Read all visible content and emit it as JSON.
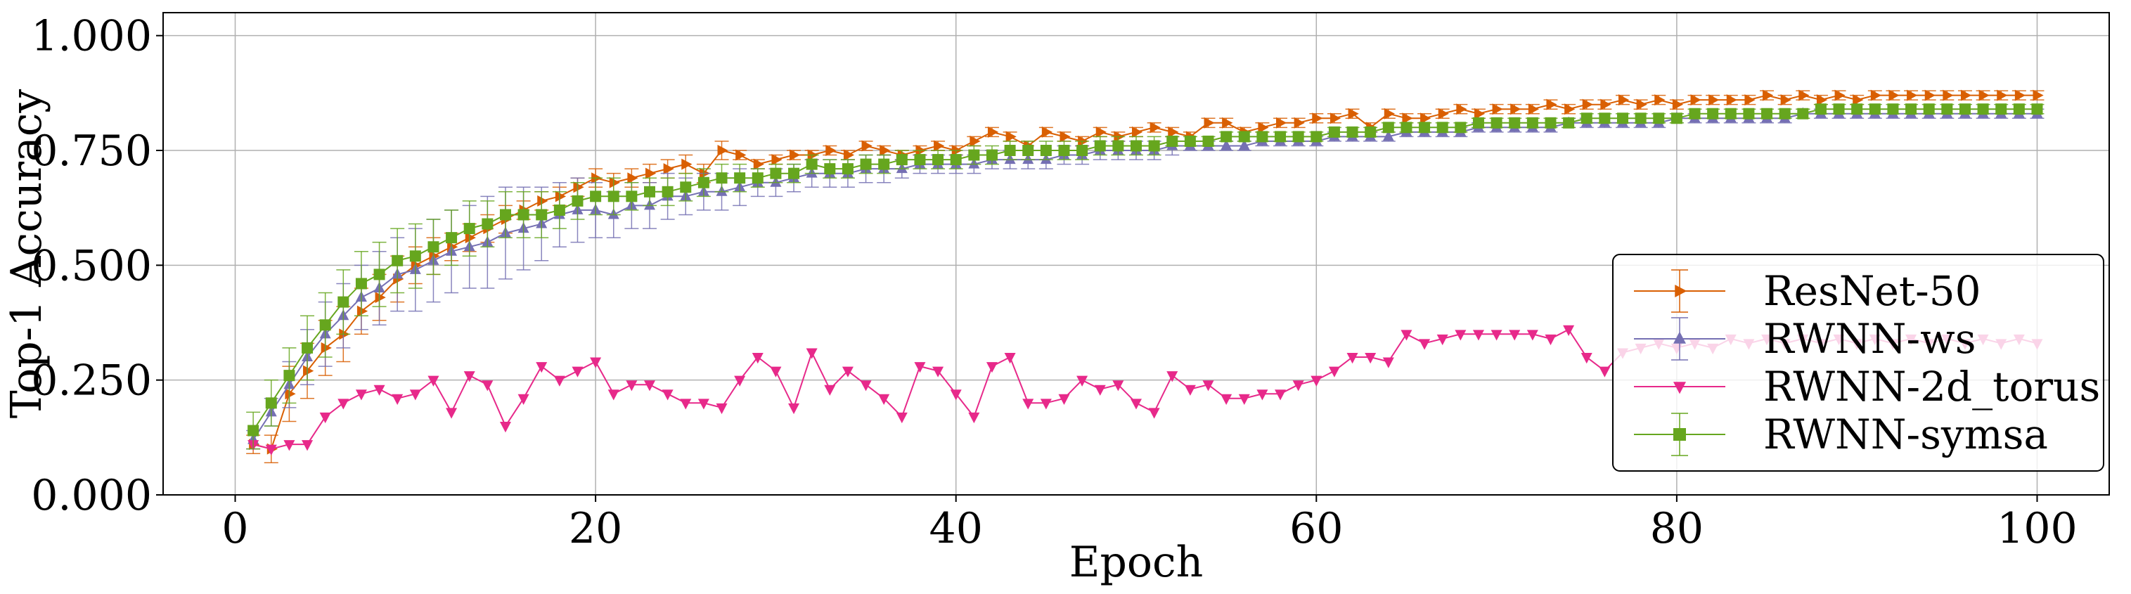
{
  "chart_data": {
    "type": "line",
    "title": "",
    "xlabel": "Epoch",
    "ylabel": "Top-1 Accuracy",
    "xlim": [
      -4,
      104
    ],
    "ylim": [
      0,
      1.05
    ],
    "xticks": [
      "0",
      "20",
      "40",
      "60",
      "80",
      "100"
    ],
    "yticks": [
      "0.000",
      "0.250",
      "0.500",
      "0.750",
      "1.000"
    ],
    "grid": true,
    "legend_position": "lower-right",
    "series": [
      {
        "name": "ResNet-50",
        "color": "#d95f02",
        "marker": "triangle-right",
        "x": [
          1,
          2,
          3,
          4,
          5,
          6,
          7,
          8,
          9,
          10,
          11,
          12,
          13,
          14,
          15,
          16,
          17,
          18,
          19,
          20,
          21,
          22,
          23,
          24,
          25,
          26,
          27,
          28,
          29,
          30,
          31,
          32,
          33,
          34,
          35,
          36,
          37,
          38,
          39,
          40,
          41,
          42,
          43,
          44,
          45,
          46,
          47,
          48,
          49,
          50,
          51,
          52,
          53,
          54,
          55,
          56,
          57,
          58,
          59,
          60,
          61,
          62,
          63,
          64,
          65,
          66,
          67,
          68,
          69,
          70,
          71,
          72,
          73,
          74,
          75,
          76,
          77,
          78,
          79,
          80,
          81,
          82,
          83,
          84,
          85,
          86,
          87,
          88,
          89,
          90,
          91,
          92,
          93,
          94,
          95,
          96,
          97,
          98,
          99,
          100
        ],
        "y": [
          0.11,
          0.1,
          0.22,
          0.27,
          0.32,
          0.35,
          0.4,
          0.43,
          0.47,
          0.5,
          0.52,
          0.54,
          0.56,
          0.58,
          0.6,
          0.62,
          0.64,
          0.65,
          0.67,
          0.69,
          0.68,
          0.69,
          0.7,
          0.71,
          0.72,
          0.7,
          0.75,
          0.74,
          0.72,
          0.73,
          0.74,
          0.74,
          0.75,
          0.74,
          0.76,
          0.75,
          0.74,
          0.75,
          0.76,
          0.75,
          0.77,
          0.79,
          0.78,
          0.76,
          0.79,
          0.78,
          0.77,
          0.79,
          0.78,
          0.79,
          0.8,
          0.79,
          0.78,
          0.81,
          0.81,
          0.79,
          0.8,
          0.81,
          0.81,
          0.82,
          0.82,
          0.83,
          0.8,
          0.83,
          0.82,
          0.82,
          0.83,
          0.84,
          0.83,
          0.84,
          0.84,
          0.84,
          0.85,
          0.84,
          0.85,
          0.85,
          0.86,
          0.85,
          0.86,
          0.85,
          0.86,
          0.86,
          0.86,
          0.86,
          0.87,
          0.86,
          0.87,
          0.86,
          0.87,
          0.86,
          0.87,
          0.87,
          0.87,
          0.87,
          0.87,
          0.87,
          0.87,
          0.87,
          0.87,
          0.87
        ],
        "err": [
          0.02,
          0.03,
          0.06,
          0.06,
          0.06,
          0.06,
          0.05,
          0.05,
          0.05,
          0.04,
          0.04,
          0.03,
          0.03,
          0.03,
          0.03,
          0.02,
          0.02,
          0.02,
          0.02,
          0.02,
          0.02,
          0.02,
          0.02,
          0.02,
          0.02,
          0.02,
          0.02,
          0.01,
          0.01,
          0.01,
          0.01,
          0.01,
          0.01,
          0.01,
          0.01,
          0.01,
          0.01,
          0.01,
          0.01,
          0.01,
          0.01,
          0.01,
          0.01,
          0.01,
          0.01,
          0.01,
          0.01,
          0.01,
          0.01,
          0.01,
          0.01,
          0.01,
          0.01,
          0.01,
          0.01,
          0.01,
          0.01,
          0.01,
          0.01,
          0.01,
          0.01,
          0.01,
          0.01,
          0.01,
          0.01,
          0.01,
          0.01,
          0.01,
          0.01,
          0.01,
          0.01,
          0.01,
          0.01,
          0.01,
          0.01,
          0.01,
          0.01,
          0.01,
          0.01,
          0.01,
          0.01,
          0.01,
          0.01,
          0.01,
          0.01,
          0.01,
          0.01,
          0.01,
          0.01,
          0.01,
          0.01,
          0.01,
          0.01,
          0.01,
          0.01,
          0.01,
          0.01,
          0.01,
          0.01,
          0.01
        ]
      },
      {
        "name": "RWNN-ws",
        "color": "#7570b3",
        "marker": "triangle-up",
        "x": [
          1,
          2,
          3,
          4,
          5,
          6,
          7,
          8,
          9,
          10,
          11,
          12,
          13,
          14,
          15,
          16,
          17,
          18,
          19,
          20,
          21,
          22,
          23,
          24,
          25,
          26,
          27,
          28,
          29,
          30,
          31,
          32,
          33,
          34,
          35,
          36,
          37,
          38,
          39,
          40,
          41,
          42,
          43,
          44,
          45,
          46,
          47,
          48,
          49,
          50,
          51,
          52,
          53,
          54,
          55,
          56,
          57,
          58,
          59,
          60,
          61,
          62,
          63,
          64,
          65,
          66,
          67,
          68,
          69,
          70,
          71,
          72,
          73,
          74,
          75,
          76,
          77,
          78,
          79,
          80,
          81,
          82,
          83,
          84,
          85,
          86,
          87,
          88,
          89,
          90,
          91,
          92,
          93,
          94,
          95,
          96,
          97,
          98,
          99,
          100
        ],
        "y": [
          0.12,
          0.18,
          0.24,
          0.3,
          0.35,
          0.39,
          0.43,
          0.45,
          0.48,
          0.49,
          0.51,
          0.53,
          0.54,
          0.55,
          0.57,
          0.58,
          0.59,
          0.61,
          0.62,
          0.62,
          0.61,
          0.63,
          0.63,
          0.65,
          0.65,
          0.66,
          0.66,
          0.67,
          0.68,
          0.68,
          0.69,
          0.7,
          0.7,
          0.7,
          0.71,
          0.71,
          0.71,
          0.72,
          0.72,
          0.72,
          0.72,
          0.73,
          0.73,
          0.73,
          0.73,
          0.74,
          0.74,
          0.75,
          0.75,
          0.75,
          0.75,
          0.76,
          0.76,
          0.76,
          0.76,
          0.76,
          0.77,
          0.77,
          0.77,
          0.77,
          0.78,
          0.78,
          0.78,
          0.78,
          0.79,
          0.79,
          0.79,
          0.79,
          0.8,
          0.8,
          0.8,
          0.8,
          0.8,
          0.81,
          0.81,
          0.81,
          0.81,
          0.81,
          0.81,
          0.82,
          0.82,
          0.82,
          0.82,
          0.82,
          0.82,
          0.82,
          0.83,
          0.83,
          0.83,
          0.83,
          0.83,
          0.83,
          0.83,
          0.83,
          0.83,
          0.83,
          0.83,
          0.83,
          0.83,
          0.83
        ],
        "err": [
          0.02,
          0.03,
          0.05,
          0.06,
          0.07,
          0.07,
          0.07,
          0.08,
          0.08,
          0.09,
          0.09,
          0.09,
          0.09,
          0.1,
          0.1,
          0.09,
          0.08,
          0.07,
          0.07,
          0.06,
          0.05,
          0.05,
          0.05,
          0.05,
          0.04,
          0.04,
          0.04,
          0.04,
          0.03,
          0.03,
          0.03,
          0.03,
          0.03,
          0.03,
          0.03,
          0.03,
          0.02,
          0.02,
          0.02,
          0.02,
          0.02,
          0.02,
          0.02,
          0.02,
          0.02,
          0.02,
          0.02,
          0.02,
          0.02,
          0.02,
          0.02,
          0.02,
          0.01,
          0.01,
          0.01,
          0.01,
          0.01,
          0.01,
          0.01,
          0.01,
          0.01,
          0.01,
          0.01,
          0.01,
          0.01,
          0.01,
          0.01,
          0.01,
          0.01,
          0.01,
          0.01,
          0.01,
          0.01,
          0.01,
          0.01,
          0.01,
          0.01,
          0.01,
          0.01,
          0.01,
          0.01,
          0.01,
          0.01,
          0.01,
          0.01,
          0.01,
          0.01,
          0.01,
          0.01,
          0.01,
          0.01,
          0.01,
          0.01,
          0.01,
          0.01,
          0.01,
          0.01,
          0.01,
          0.01,
          0.01
        ]
      },
      {
        "name": "RWNN-2d_torus",
        "color": "#e7298a",
        "marker": "triangle-down",
        "x": [
          1,
          2,
          3,
          4,
          5,
          6,
          7,
          8,
          9,
          10,
          11,
          12,
          13,
          14,
          15,
          16,
          17,
          18,
          19,
          20,
          21,
          22,
          23,
          24,
          25,
          26,
          27,
          28,
          29,
          30,
          31,
          32,
          33,
          34,
          35,
          36,
          37,
          38,
          39,
          40,
          41,
          42,
          43,
          44,
          45,
          46,
          47,
          48,
          49,
          50,
          51,
          52,
          53,
          54,
          55,
          56,
          57,
          58,
          59,
          60,
          61,
          62,
          63,
          64,
          65,
          66,
          67,
          68,
          69,
          70,
          71,
          72,
          73,
          74,
          75,
          76,
          77,
          78,
          79,
          80,
          81,
          82,
          83,
          84,
          85,
          86,
          87,
          88,
          89,
          90,
          91,
          92,
          93,
          94,
          95,
          96,
          97,
          98,
          99,
          100
        ],
        "y": [
          0.11,
          0.1,
          0.11,
          0.11,
          0.17,
          0.2,
          0.22,
          0.23,
          0.21,
          0.22,
          0.25,
          0.18,
          0.26,
          0.24,
          0.15,
          0.21,
          0.28,
          0.25,
          0.27,
          0.29,
          0.22,
          0.24,
          0.24,
          0.22,
          0.2,
          0.2,
          0.19,
          0.25,
          0.3,
          0.27,
          0.19,
          0.31,
          0.23,
          0.27,
          0.24,
          0.21,
          0.17,
          0.28,
          0.27,
          0.22,
          0.17,
          0.28,
          0.3,
          0.2,
          0.2,
          0.21,
          0.25,
          0.23,
          0.24,
          0.2,
          0.18,
          0.26,
          0.23,
          0.24,
          0.21,
          0.21,
          0.22,
          0.22,
          0.24,
          0.25,
          0.27,
          0.3,
          0.3,
          0.29,
          0.35,
          0.33,
          0.34,
          0.35,
          0.35,
          0.35,
          0.35,
          0.35,
          0.34,
          0.36,
          0.3,
          0.27,
          0.31,
          0.32,
          0.33,
          0.32,
          0.33,
          0.32,
          0.34,
          0.33,
          0.34,
          0.33,
          0.34,
          0.33,
          0.34,
          0.33,
          0.34,
          0.33,
          0.34,
          0.33,
          0.34,
          0.33,
          0.34,
          0.33,
          0.34,
          0.33
        ],
        "err": []
      },
      {
        "name": "RWNN-symsa",
        "color": "#66a61e",
        "marker": "square",
        "x": [
          1,
          2,
          3,
          4,
          5,
          6,
          7,
          8,
          9,
          10,
          11,
          12,
          13,
          14,
          15,
          16,
          17,
          18,
          19,
          20,
          21,
          22,
          23,
          24,
          25,
          26,
          27,
          28,
          29,
          30,
          31,
          32,
          33,
          34,
          35,
          36,
          37,
          38,
          39,
          40,
          41,
          42,
          43,
          44,
          45,
          46,
          47,
          48,
          49,
          50,
          51,
          52,
          53,
          54,
          55,
          56,
          57,
          58,
          59,
          60,
          61,
          62,
          63,
          64,
          65,
          66,
          67,
          68,
          69,
          70,
          71,
          72,
          73,
          74,
          75,
          76,
          77,
          78,
          79,
          80,
          81,
          82,
          83,
          84,
          85,
          86,
          87,
          88,
          89,
          90,
          91,
          92,
          93,
          94,
          95,
          96,
          97,
          98,
          99,
          100
        ],
        "y": [
          0.14,
          0.2,
          0.26,
          0.32,
          0.37,
          0.42,
          0.46,
          0.48,
          0.51,
          0.52,
          0.54,
          0.56,
          0.58,
          0.59,
          0.61,
          0.61,
          0.61,
          0.62,
          0.64,
          0.65,
          0.65,
          0.65,
          0.66,
          0.66,
          0.67,
          0.68,
          0.69,
          0.69,
          0.69,
          0.7,
          0.7,
          0.72,
          0.71,
          0.71,
          0.72,
          0.72,
          0.73,
          0.73,
          0.73,
          0.73,
          0.74,
          0.74,
          0.75,
          0.75,
          0.75,
          0.75,
          0.75,
          0.76,
          0.76,
          0.76,
          0.76,
          0.77,
          0.77,
          0.77,
          0.78,
          0.78,
          0.78,
          0.78,
          0.78,
          0.78,
          0.79,
          0.79,
          0.79,
          0.8,
          0.8,
          0.8,
          0.8,
          0.8,
          0.81,
          0.81,
          0.81,
          0.81,
          0.81,
          0.81,
          0.82,
          0.82,
          0.82,
          0.82,
          0.82,
          0.82,
          0.83,
          0.83,
          0.83,
          0.83,
          0.83,
          0.83,
          0.83,
          0.84,
          0.84,
          0.84,
          0.84,
          0.84,
          0.84,
          0.84,
          0.84,
          0.84,
          0.84,
          0.84,
          0.84,
          0.84
        ],
        "err": [
          0.04,
          0.05,
          0.06,
          0.07,
          0.07,
          0.07,
          0.07,
          0.07,
          0.07,
          0.07,
          0.06,
          0.06,
          0.06,
          0.05,
          0.05,
          0.05,
          0.05,
          0.04,
          0.04,
          0.04,
          0.04,
          0.03,
          0.03,
          0.03,
          0.03,
          0.03,
          0.03,
          0.03,
          0.02,
          0.02,
          0.02,
          0.02,
          0.02,
          0.02,
          0.02,
          0.02,
          0.02,
          0.02,
          0.02,
          0.02,
          0.02,
          0.02,
          0.02,
          0.02,
          0.02,
          0.02,
          0.02,
          0.02,
          0.02,
          0.02,
          0.02,
          0.01,
          0.01,
          0.01,
          0.01,
          0.01,
          0.01,
          0.01,
          0.01,
          0.01,
          0.01,
          0.01,
          0.01,
          0.01,
          0.01,
          0.01,
          0.01,
          0.01,
          0.01,
          0.01,
          0.01,
          0.01,
          0.01,
          0.01,
          0.01,
          0.01,
          0.01,
          0.01,
          0.01,
          0.01,
          0.01,
          0.01,
          0.01,
          0.01,
          0.01,
          0.01,
          0.01,
          0.01,
          0.01,
          0.01,
          0.01,
          0.01,
          0.01,
          0.01,
          0.01,
          0.01,
          0.01,
          0.01,
          0.01,
          0.01
        ]
      }
    ]
  }
}
